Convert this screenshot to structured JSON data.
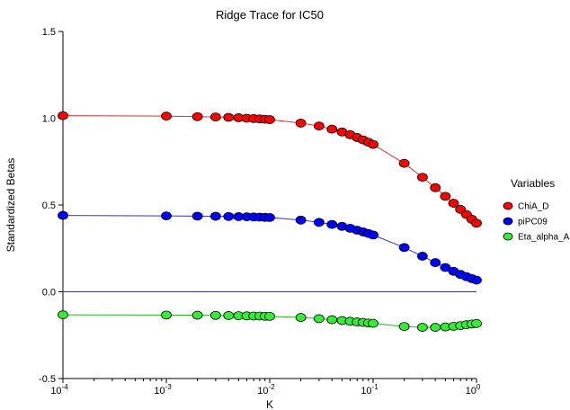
{
  "chart_data": {
    "type": "line",
    "title": "Ridge Trace for IC50",
    "xlabel": "K",
    "ylabel": "Standardized Betas",
    "x_scale": "log",
    "xlim": [
      0.0001,
      1
    ],
    "ylim": [
      -0.5,
      1.5
    ],
    "grid": false,
    "x_ticks": [
      {
        "base": "10",
        "exp": "-4",
        "value": 0.0001
      },
      {
        "base": "10",
        "exp": "-3",
        "value": 0.001
      },
      {
        "base": "10",
        "exp": "-2",
        "value": 0.01
      },
      {
        "base": "10",
        "exp": "-1",
        "value": 0.1
      },
      {
        "base": "10",
        "exp": "0",
        "value": 1
      }
    ],
    "y_ticks": [
      {
        "label": "-0.5",
        "value": -0.5
      },
      {
        "label": "0.0",
        "value": 0.0
      },
      {
        "label": "0.5",
        "value": 0.5
      },
      {
        "label": "1.0",
        "value": 1.0
      },
      {
        "label": "1.5",
        "value": 1.5
      }
    ],
    "reference_line": 0.0,
    "legend_title": "Variables",
    "legend_position": "right",
    "x": [
      0.0001,
      0.001,
      0.002,
      0.003,
      0.004,
      0.005,
      0.006,
      0.007,
      0.008,
      0.009,
      0.01,
      0.02,
      0.03,
      0.04,
      0.05,
      0.06,
      0.07,
      0.08,
      0.09,
      0.1,
      0.2,
      0.3,
      0.4,
      0.5,
      0.6,
      0.7,
      0.8,
      0.9,
      1.0
    ],
    "series": [
      {
        "name": "ChiA_D",
        "color": "#ff0000",
        "line_color": "#e03030",
        "values": [
          1.015,
          1.012,
          1.009,
          1.007,
          1.005,
          1.003,
          1.0,
          0.998,
          0.996,
          0.994,
          0.992,
          0.972,
          0.955,
          0.937,
          0.921,
          0.905,
          0.889,
          0.875,
          0.862,
          0.849,
          0.74,
          0.66,
          0.6,
          0.55,
          0.51,
          0.475,
          0.445,
          0.418,
          0.395
        ]
      },
      {
        "name": "piPC09",
        "color": "#0000ff",
        "line_color": "#3030e0",
        "values": [
          0.44,
          0.437,
          0.436,
          0.435,
          0.434,
          0.433,
          0.432,
          0.431,
          0.43,
          0.429,
          0.428,
          0.413,
          0.4,
          0.388,
          0.377,
          0.366,
          0.355,
          0.345,
          0.336,
          0.327,
          0.255,
          0.205,
          0.168,
          0.14,
          0.118,
          0.1,
          0.087,
          0.076,
          0.067
        ]
      },
      {
        "name": "Eta_alpha_A",
        "color": "#33ee33",
        "line_color": "#22bb22",
        "values": [
          -0.133,
          -0.134,
          -0.135,
          -0.136,
          -0.137,
          -0.138,
          -0.139,
          -0.14,
          -0.14,
          -0.141,
          -0.142,
          -0.148,
          -0.155,
          -0.161,
          -0.166,
          -0.17,
          -0.174,
          -0.177,
          -0.18,
          -0.182,
          -0.2,
          -0.205,
          -0.205,
          -0.203,
          -0.199,
          -0.195,
          -0.19,
          -0.186,
          -0.183
        ]
      }
    ]
  }
}
